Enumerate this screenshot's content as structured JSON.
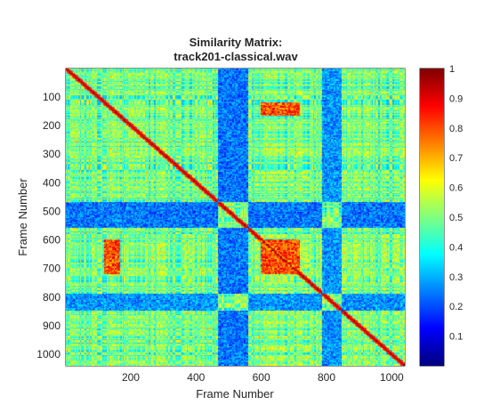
{
  "chart_data": {
    "type": "heatmap",
    "title_lines": [
      "Similarity Matrix:",
      "track201-classical.wav"
    ],
    "xlabel": "Frame Number",
    "ylabel": "Frame Number",
    "xlim": [
      1,
      1040
    ],
    "ylim": [
      1,
      1040
    ],
    "y_axis_direction": "top-to-bottom",
    "x_ticks": [
      200,
      400,
      600,
      800,
      1000
    ],
    "y_ticks": [
      100,
      200,
      300,
      400,
      500,
      600,
      700,
      800,
      900,
      1000
    ],
    "colorbar": {
      "colormap": "jet",
      "range": [
        0,
        1
      ],
      "ticks": [
        0.1,
        0.2,
        0.3,
        0.4,
        0.5,
        0.6,
        0.7,
        0.8,
        0.9,
        1
      ]
    },
    "diagonal_value": 1,
    "high_similarity_regions": [
      {
        "rows": [
          600,
          720
        ],
        "cols": [
          600,
          720
        ],
        "value": 0.8
      },
      {
        "rows": [
          600,
          720
        ],
        "cols": [
          120,
          170
        ],
        "value": 0.8
      },
      {
        "rows": [
          120,
          170
        ],
        "cols": [
          600,
          720
        ],
        "value": 0.8
      }
    ],
    "low_similarity_bands": [
      {
        "range": [
          470,
          560
        ],
        "value": 0.15
      },
      {
        "range": [
          790,
          850
        ],
        "value": 0.18
      }
    ]
  }
}
